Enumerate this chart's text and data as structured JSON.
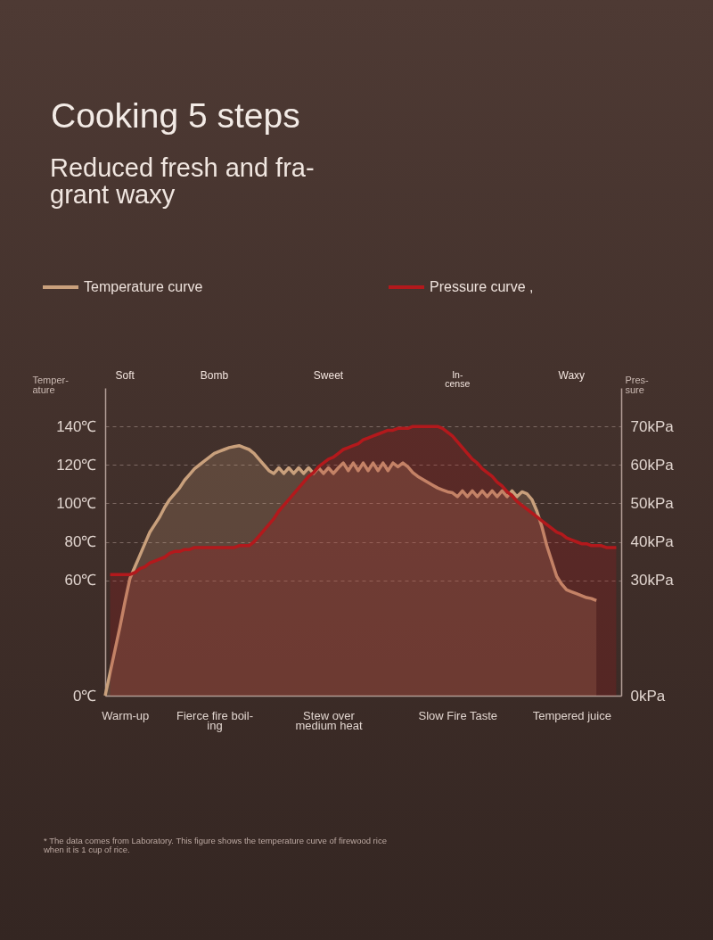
{
  "chart_data": {
    "type": "area",
    "title": "Cooking 5 steps",
    "subtitle": "Reduced fresh and fra-\ngrant waxy",
    "ylabel": "Temper-\nature",
    "y2label": "Pres-\nsure",
    "categories": [
      null,
      null,
      null,
      null,
      "Warm-up",
      null,
      null,
      null,
      null,
      null,
      null,
      null,
      null,
      null,
      null,
      null,
      null,
      null,
      null,
      null,
      null,
      null,
      "Fierce fire boil-\ning",
      null,
      null,
      null,
      null,
      null,
      null,
      null,
      null,
      null,
      null,
      null,
      null,
      null,
      null,
      null,
      null,
      null,
      null,
      null,
      null,
      null,
      null,
      "Stew over\nmedium heat",
      null,
      null,
      null,
      null,
      null,
      null,
      null,
      null,
      null,
      null,
      null,
      null,
      null,
      null,
      null,
      null,
      null,
      null,
      null,
      null,
      null,
      null,
      null,
      null,
      null,
      "Slow Fire Taste",
      null,
      null,
      null,
      null,
      null,
      null,
      null,
      null,
      null,
      null,
      null,
      null,
      null,
      null,
      null,
      null,
      null,
      null,
      null,
      null,
      null,
      null,
      "Tempered juice",
      null,
      null,
      null,
      null,
      null,
      null,
      null,
      null,
      null,
      null
    ],
    "ylim": [
      0,
      160
    ],
    "y2lim": [
      0,
      80
    ],
    "yticks": [
      {
        "value": 0,
        "label": "0℃"
      },
      {
        "value": 60,
        "label": "60℃"
      },
      {
        "value": 80,
        "label": "80℃"
      },
      {
        "value": 100,
        "label": "100℃"
      },
      {
        "value": 120,
        "label": "120℃"
      },
      {
        "value": 140,
        "label": "140℃"
      }
    ],
    "y2ticks": [
      {
        "value": 0,
        "label": "0kPa"
      },
      {
        "value": 30,
        "label": "30kPa"
      },
      {
        "value": 40,
        "label": "40kPa"
      },
      {
        "value": 50,
        "label": "50kPa"
      },
      {
        "value": 60,
        "label": "60kPa"
      },
      {
        "value": 70,
        "label": "70kPa"
      }
    ],
    "grid": "y",
    "legend": "top",
    "series": [
      {
        "name": "Temperature curve",
        "color": "#c9a07c",
        "values": [
          0,
          12,
          24,
          36,
          49,
          61,
          67,
          73,
          79,
          85,
          89,
          93,
          98,
          102,
          105,
          108,
          112,
          115,
          118,
          120,
          122,
          124,
          126,
          127,
          128,
          129,
          129.5,
          130,
          129,
          128,
          126,
          123,
          120,
          117,
          115.5,
          118.5,
          115.5,
          118.5,
          115.5,
          118.5,
          115.5,
          118.5,
          115.5,
          118.5,
          115.5,
          118.5,
          115.5,
          118.5,
          121,
          117,
          121,
          117,
          121,
          117,
          121,
          117,
          121,
          117,
          121,
          119,
          121,
          119,
          116,
          114,
          112.5,
          111,
          109.5,
          108,
          107,
          106,
          105.5,
          103.5,
          106.5,
          103.5,
          106.5,
          103.5,
          106.5,
          103.5,
          106.5,
          103.5,
          106.5,
          103.5,
          106.5,
          103.5,
          106,
          105,
          102,
          96,
          88,
          78,
          70,
          62,
          58,
          55,
          54,
          53,
          52,
          51,
          50.5,
          49.5,
          null,
          null,
          null,
          null,
          null
        ]
      },
      {
        "name": "Pressure curve ,",
        "color": "#b3191c",
        "axis": "y2",
        "values": [
          null,
          31.5,
          31.5,
          31.5,
          31.5,
          31.5,
          32,
          33,
          33.5,
          34.5,
          35,
          35.5,
          36,
          37,
          37.5,
          37.5,
          38,
          38,
          38.5,
          38.5,
          38.5,
          38.5,
          38.5,
          38.5,
          38.5,
          38.5,
          38.5,
          39,
          39,
          39,
          40,
          41.5,
          43,
          44.5,
          46,
          48,
          49.5,
          51,
          52.5,
          54,
          55.5,
          57,
          58,
          59.5,
          60.5,
          61.5,
          62,
          63,
          64,
          64.5,
          65,
          65.5,
          66.5,
          67,
          67.5,
          68,
          68.5,
          69,
          69,
          69.5,
          69.5,
          69.5,
          70,
          70,
          70,
          70,
          70,
          70,
          69.5,
          68.5,
          67.5,
          66,
          64.5,
          63,
          61.5,
          60.5,
          59,
          58,
          57,
          55.5,
          54.5,
          53,
          52,
          50.5,
          49.5,
          48.5,
          47.5,
          46.5,
          45.5,
          44.5,
          43.5,
          42.5,
          42,
          41,
          40.5,
          40,
          39.5,
          39.5,
          39,
          39,
          39,
          38.5,
          38.5,
          38.5,
          null
        ]
      }
    ],
    "annotations": [
      "Soft",
      "Bomb",
      "Sweet",
      "In-\ncense",
      "Waxy",
      "* The data comes from Laboratory. This figure shows the temperature curve of firewood rice\nwhen it is 1 cup of rice."
    ]
  }
}
